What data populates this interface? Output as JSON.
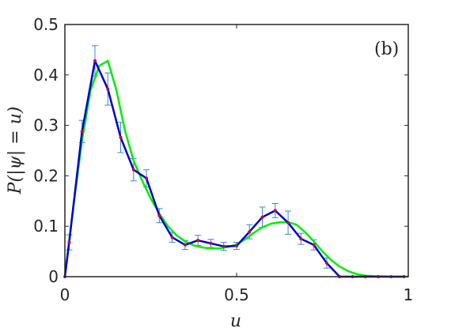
{
  "chart_data": {
    "type": "line",
    "xlabel": "u",
    "ylabel": "P(|ψ| = u)",
    "panel_label": "(b)",
    "xlim": [
      0,
      1
    ],
    "ylim": [
      0,
      0.5
    ],
    "xticks": [
      0,
      0.5,
      1
    ],
    "xtick_labels": [
      "0",
      "0.5",
      "1"
    ],
    "yticks": [
      0,
      0.1,
      0.2,
      0.3,
      0.4,
      0.5
    ],
    "ytick_labels": [
      "0",
      "0.1",
      "0.2",
      "0.3",
      "0.4",
      "0.5"
    ],
    "grid": false,
    "colors": {
      "data_line": "#0000cc",
      "data_markers": "#cc0044",
      "error_bars": "#3a86c8",
      "fit_line": "#00ee00",
      "axes": "#262626"
    },
    "series": [
      {
        "kind": "data_with_errorbars",
        "x": [
          0.0,
          0.0125,
          0.05,
          0.0875,
          0.125,
          0.1625,
          0.2,
          0.2375,
          0.275,
          0.3125,
          0.35,
          0.3875,
          0.425,
          0.4625,
          0.5,
          0.5375,
          0.575,
          0.6125,
          0.65,
          0.6875,
          0.725,
          0.7625,
          0.8,
          0.8375,
          0.875,
          0.9125,
          0.95,
          0.9875
        ],
        "y": [
          0.0,
          0.068,
          0.288,
          0.428,
          0.372,
          0.276,
          0.212,
          0.195,
          0.121,
          0.078,
          0.063,
          0.072,
          0.066,
          0.06,
          0.061,
          0.089,
          0.118,
          0.131,
          0.107,
          0.075,
          0.063,
          0.027,
          0.0,
          0.0,
          0.0,
          0.0,
          0.0,
          0.0
        ],
        "err": [
          0.0,
          0.015,
          0.022,
          0.03,
          0.032,
          0.03,
          0.022,
          0.017,
          0.014,
          0.01,
          0.009,
          0.01,
          0.008,
          0.008,
          0.007,
          0.014,
          0.02,
          0.014,
          0.023,
          0.011,
          0.01,
          0.01,
          0.0,
          0.0,
          0.0,
          0.0,
          0.0,
          0.0
        ]
      },
      {
        "kind": "fit",
        "x": [
          0.0,
          0.025,
          0.05,
          0.075,
          0.1,
          0.125,
          0.15,
          0.175,
          0.2,
          0.225,
          0.25,
          0.275,
          0.3,
          0.325,
          0.35,
          0.375,
          0.4,
          0.425,
          0.45,
          0.475,
          0.5,
          0.525,
          0.55,
          0.575,
          0.6,
          0.625,
          0.65,
          0.675,
          0.7,
          0.725,
          0.75,
          0.775,
          0.8,
          0.825,
          0.85,
          0.875,
          0.9,
          0.95,
          1.0
        ],
        "y": [
          0.0,
          0.14,
          0.27,
          0.37,
          0.418,
          0.428,
          0.37,
          0.29,
          0.23,
          0.19,
          0.155,
          0.125,
          0.1,
          0.082,
          0.07,
          0.062,
          0.058,
          0.056,
          0.056,
          0.059,
          0.064,
          0.074,
          0.087,
          0.098,
          0.105,
          0.108,
          0.108,
          0.103,
          0.088,
          0.07,
          0.05,
          0.033,
          0.02,
          0.011,
          0.005,
          0.002,
          0.001,
          0.0,
          0.0
        ]
      }
    ]
  }
}
